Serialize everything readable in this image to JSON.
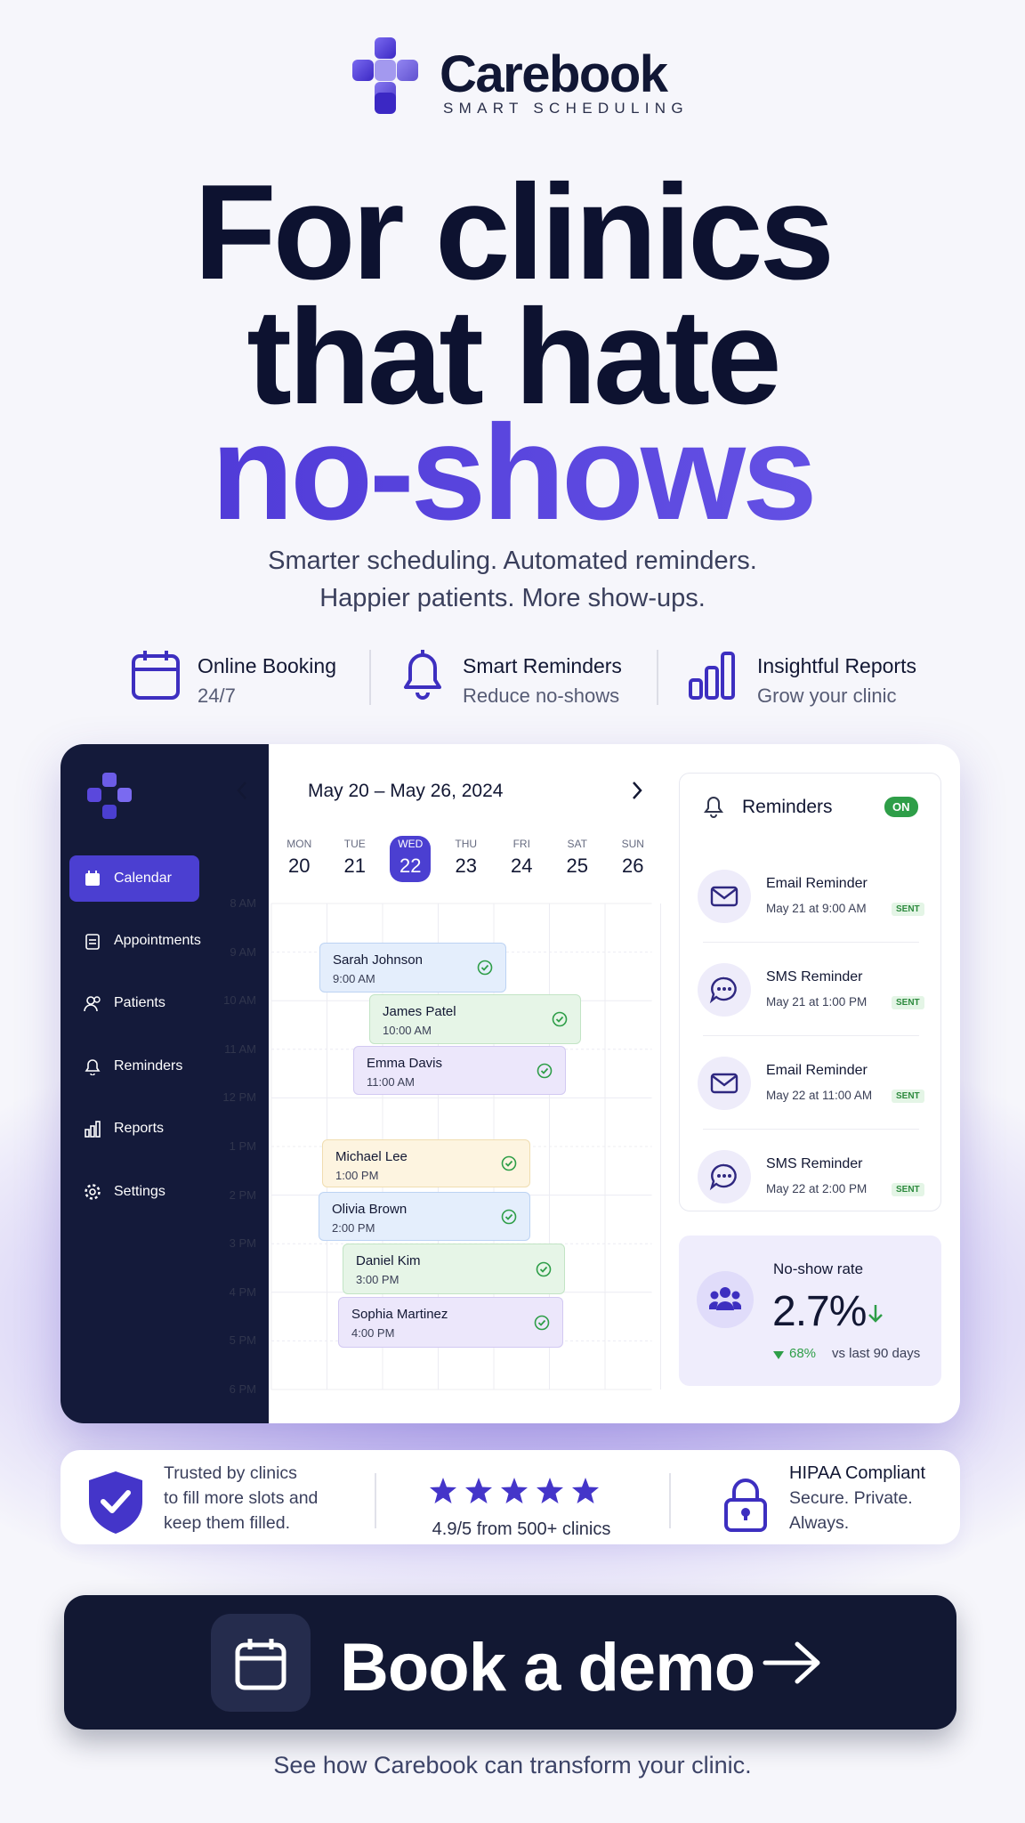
{
  "brand": {
    "name": "Carebook",
    "tagline": "SMART SCHEDULING"
  },
  "headline": {
    "lines": [
      "For clinics",
      "that hate"
    ],
    "highlight": "no-shows"
  },
  "subtitle": [
    "Smarter scheduling. Automated reminders.",
    "Happier patients. More show-ups."
  ],
  "features": [
    {
      "title": "Online Booking",
      "subtitle": "24/7"
    },
    {
      "title": "Smart Reminders",
      "subtitle": "Reduce no-shows"
    },
    {
      "title": "Insightful Reports",
      "subtitle": "Grow your clinic"
    }
  ],
  "dashboard": {
    "nav": [
      "Calendar",
      "Appointments",
      "Patients",
      "Reminders",
      "Reports",
      "Settings"
    ],
    "date_range": "May 20 – May 26, 2024",
    "days": [
      {
        "name": "MON",
        "date": "20"
      },
      {
        "name": "TUE",
        "date": "21"
      },
      {
        "name": "WED",
        "date": "22"
      },
      {
        "name": "THU",
        "date": "23"
      },
      {
        "name": "FRI",
        "date": "24"
      },
      {
        "name": "SAT",
        "date": "25"
      },
      {
        "name": "SUN",
        "date": "26"
      }
    ],
    "times": [
      "8 AM",
      "9 AM",
      "10 AM",
      "11 AM",
      "12 PM",
      "1 PM",
      "2 PM",
      "3 PM",
      "4 PM",
      "5 PM",
      "6 PM"
    ],
    "appointments": [
      {
        "name": "Sarah Johnson",
        "time": "9:00 AM"
      },
      {
        "name": "James Patel",
        "time": "10:00 AM"
      },
      {
        "name": "Emma Davis",
        "time": "11:00 AM"
      },
      {
        "name": "Michael Lee",
        "time": "1:00 PM"
      },
      {
        "name": "Olivia Brown",
        "time": "2:00 PM"
      },
      {
        "name": "Daniel Kim",
        "time": "3:00 PM"
      },
      {
        "name": "Sophia Martinez",
        "time": "4:00 PM"
      }
    ],
    "reminders": {
      "title": "Reminders",
      "status": "ON",
      "items": [
        {
          "title": "Email Reminder",
          "time": "May 21 at 9:00 AM",
          "status": "SENT"
        },
        {
          "title": "SMS Reminder",
          "time": "May 21 at 1:00 PM",
          "status": "SENT"
        },
        {
          "title": "Email Reminder",
          "time": "May 22 at 11:00 AM",
          "status": "SENT"
        },
        {
          "title": "SMS Reminder",
          "time": "May 22 at 2:00 PM",
          "status": "SENT"
        }
      ]
    },
    "no_show": {
      "label": "No-show rate",
      "value": "2.7%",
      "change": "68%",
      "comparison": "vs last 90 days"
    }
  },
  "trust": {
    "clinics": [
      "Trusted by clinics",
      "to fill more slots and",
      "keep them filled."
    ],
    "rating": "4.9/5 from 500+ clinics",
    "hipaa": {
      "title": "HIPAA Compliant",
      "lines": [
        "Secure. Private.",
        "Always."
      ]
    }
  },
  "cta": {
    "label": "Book a demo",
    "footnote": "See how Carebook can transform your clinic."
  }
}
